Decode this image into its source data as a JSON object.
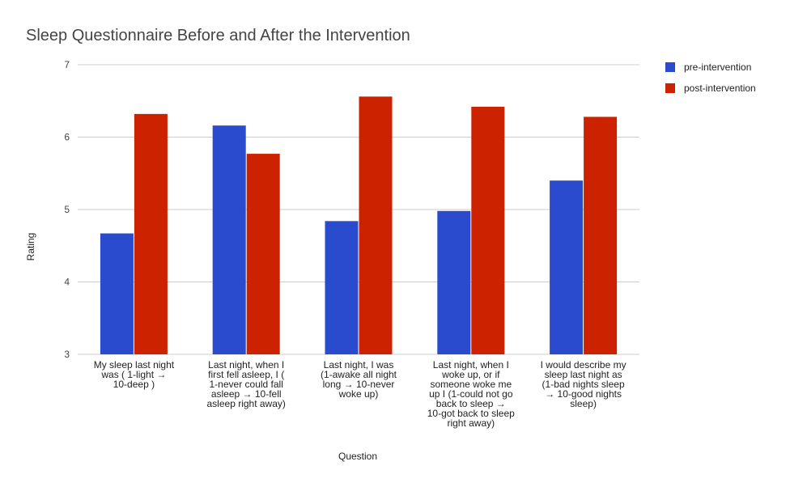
{
  "chart_data": {
    "type": "bar",
    "title": "Sleep Questionnaire Before and After the Intervention",
    "xlabel": "Question",
    "ylabel": "Rating",
    "ylim": [
      3,
      7
    ],
    "yticks": [
      3,
      4,
      5,
      6,
      7
    ],
    "grid": true,
    "legend_position": "right",
    "categories": [
      [
        "My sleep last night",
        "was ( 1-light →",
        "10-deep )"
      ],
      [
        "Last night, when I",
        "first fell asleep, I (",
        "1-never could fall",
        "asleep → 10-fell",
        "asleep right away)"
      ],
      [
        "Last night, I was",
        "(1-awake all night",
        "long → 10-never",
        "woke up)"
      ],
      [
        "Last night, when I",
        "woke up, or if",
        "someone woke me",
        "up I (1-could not go",
        "back to sleep →",
        "10-got back to sleep",
        "right away)"
      ],
      [
        "I would describe my",
        "sleep last night as",
        "(1-bad nights sleep",
        "→ 10-good nights",
        "sleep)"
      ]
    ],
    "series": [
      {
        "name": "pre-intervention",
        "color": "#2a4bce",
        "values": [
          4.67,
          6.16,
          4.84,
          4.98,
          5.4
        ]
      },
      {
        "name": "post-intervention",
        "color": "#cc2200",
        "values": [
          6.32,
          5.77,
          6.56,
          6.42,
          6.28
        ]
      }
    ]
  }
}
